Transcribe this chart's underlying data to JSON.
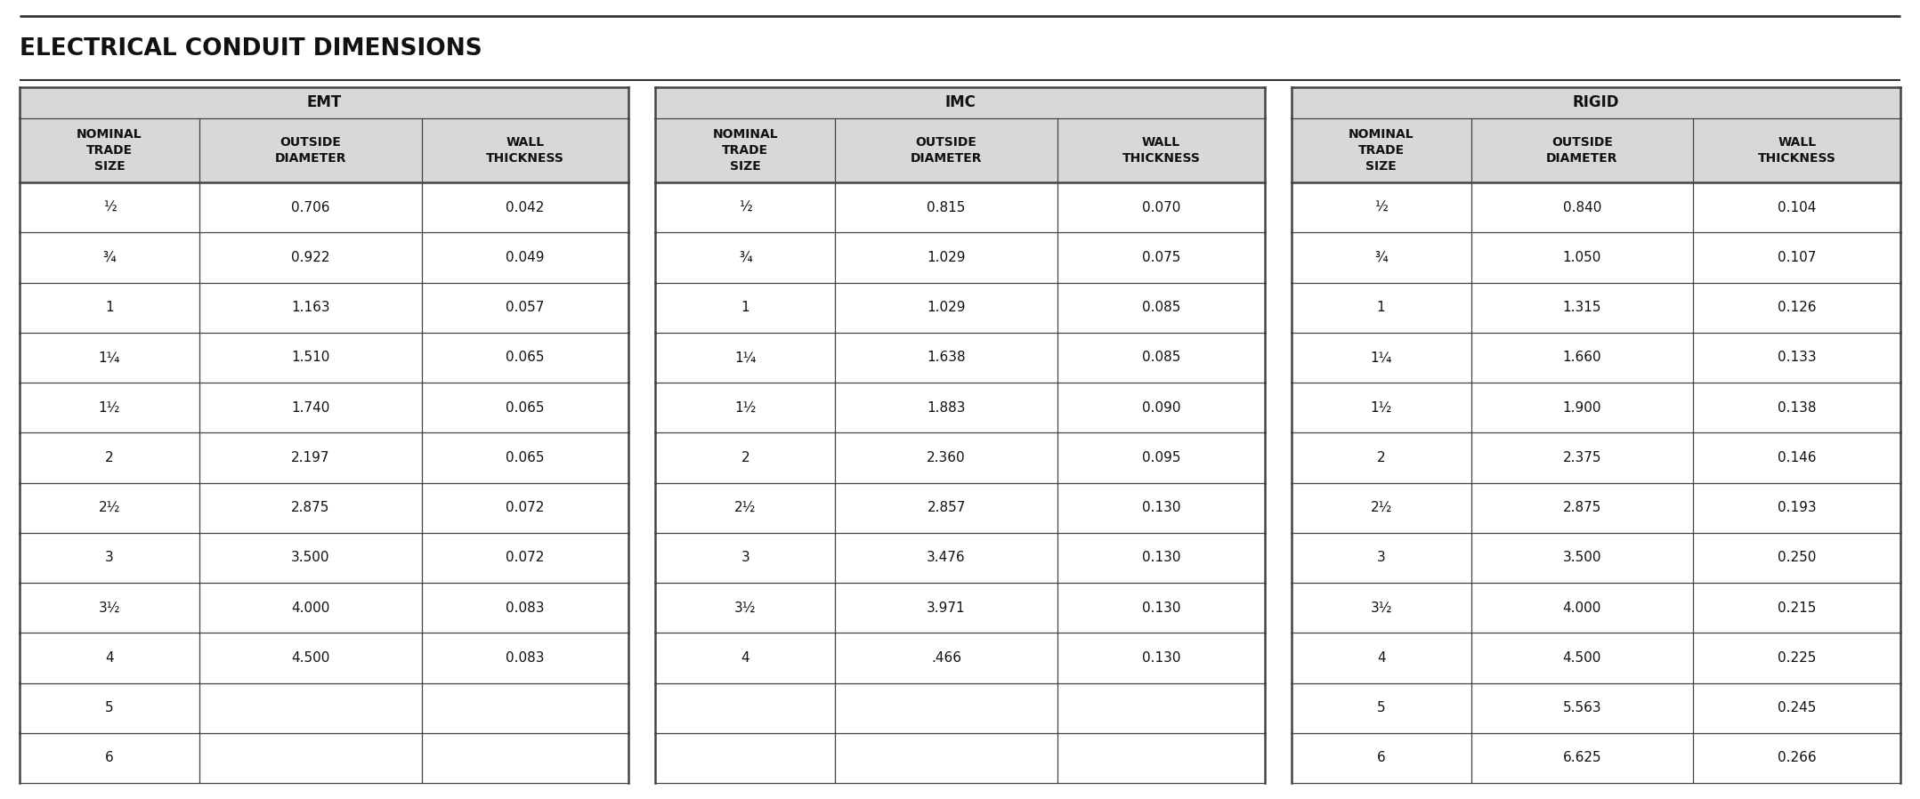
{
  "title": "ELECTRICAL CONDUIT DIMENSIONS",
  "sections": [
    "EMT",
    "IMC",
    "RIGID"
  ],
  "col_headers": [
    "NOMINAL\nTRADE\nSIZE",
    "OUTSIDE\nDIAMETER",
    "WALL\nTHICKNESS"
  ],
  "emt_data": [
    [
      "½",
      "0.706",
      "0.042"
    ],
    [
      "¾",
      "0.922",
      "0.049"
    ],
    [
      "1",
      "1.163",
      "0.057"
    ],
    [
      "1¼",
      "1.510",
      "0.065"
    ],
    [
      "1½",
      "1.740",
      "0.065"
    ],
    [
      "2",
      "2.197",
      "0.065"
    ],
    [
      "2½",
      "2.875",
      "0.072"
    ],
    [
      "3",
      "3.500",
      "0.072"
    ],
    [
      "3½",
      "4.000",
      "0.083"
    ],
    [
      "4",
      "4.500",
      "0.083"
    ],
    [
      "5",
      "",
      ""
    ],
    [
      "6",
      "",
      ""
    ]
  ],
  "imc_data": [
    [
      "½",
      "0.815",
      "0.070"
    ],
    [
      "¾",
      "1.029",
      "0.075"
    ],
    [
      "1",
      "1.029",
      "0.085"
    ],
    [
      "1¼",
      "1.638",
      "0.085"
    ],
    [
      "1½",
      "1.883",
      "0.090"
    ],
    [
      "2",
      "2.360",
      "0.095"
    ],
    [
      "2½",
      "2.857",
      "0.130"
    ],
    [
      "3",
      "3.476",
      "0.130"
    ],
    [
      "3½",
      "3.971",
      "0.130"
    ],
    [
      "4",
      ".466",
      "0.130"
    ],
    [
      "",
      "",
      ""
    ],
    [
      "",
      "",
      ""
    ]
  ],
  "rigid_data": [
    [
      "½",
      "0.840",
      "0.104"
    ],
    [
      "¾",
      "1.050",
      "0.107"
    ],
    [
      "1",
      "1.315",
      "0.126"
    ],
    [
      "1¼",
      "1.660",
      "0.133"
    ],
    [
      "1½",
      "1.900",
      "0.138"
    ],
    [
      "2",
      "2.375",
      "0.146"
    ],
    [
      "2½",
      "2.875",
      "0.193"
    ],
    [
      "3",
      "3.500",
      "0.250"
    ],
    [
      "3½",
      "4.000",
      "0.215"
    ],
    [
      "4",
      "4.500",
      "0.225"
    ],
    [
      "5",
      "5.563",
      "0.245"
    ],
    [
      "6",
      "6.625",
      "0.266"
    ]
  ],
  "fig_width": 21.57,
  "fig_height": 8.98,
  "dpi": 100,
  "bg_color": "#ffffff",
  "header_bg": "#d8d8d8",
  "border_color": "#444444",
  "title_color": "#111111",
  "text_color": "#222222",
  "title_fontsize": 19,
  "section_fontsize": 12,
  "col_header_fontsize": 10,
  "data_fontsize": 11
}
